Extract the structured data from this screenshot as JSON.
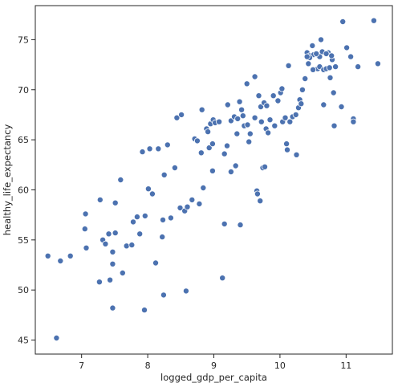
{
  "chart_data": {
    "type": "scatter",
    "title": "",
    "xlabel": "logged_gdp_per_capita",
    "ylabel": "healthy_life_expectancy",
    "xlim": [
      6.3,
      11.7
    ],
    "ylim": [
      43.6,
      78.4
    ],
    "xticks": [
      7,
      8,
      9,
      10,
      11
    ],
    "yticks": [
      45,
      50,
      55,
      60,
      65,
      70,
      75
    ],
    "grid": false,
    "marker_color": "#4c72b0",
    "marker_edge_color": "#ffffff",
    "series": [
      {
        "points": [
          [
            6.49,
            53.4
          ],
          [
            6.62,
            45.2
          ],
          [
            6.68,
            52.9
          ],
          [
            6.83,
            53.4
          ],
          [
            7.05,
            56.1
          ],
          [
            7.06,
            57.6
          ],
          [
            7.07,
            54.2
          ],
          [
            7.27,
            50.8
          ],
          [
            7.28,
            59.0
          ],
          [
            7.32,
            55.0
          ],
          [
            7.36,
            54.6
          ],
          [
            7.41,
            55.6
          ],
          [
            7.43,
            51.0
          ],
          [
            7.47,
            53.8
          ],
          [
            7.47,
            52.6
          ],
          [
            7.47,
            48.2
          ],
          [
            7.51,
            58.7
          ],
          [
            7.51,
            55.7
          ],
          [
            7.59,
            61.0
          ],
          [
            7.62,
            51.7
          ],
          [
            7.68,
            54.4
          ],
          [
            7.76,
            54.5
          ],
          [
            7.78,
            56.8
          ],
          [
            7.84,
            57.3
          ],
          [
            7.88,
            55.6
          ],
          [
            7.92,
            63.8
          ],
          [
            7.95,
            48.0
          ],
          [
            7.96,
            57.4
          ],
          [
            8.01,
            60.1
          ],
          [
            8.03,
            64.1
          ],
          [
            8.07,
            59.6
          ],
          [
            8.12,
            52.7
          ],
          [
            8.16,
            64.1
          ],
          [
            8.22,
            55.3
          ],
          [
            8.24,
            49.5
          ],
          [
            8.23,
            57.0
          ],
          [
            8.25,
            61.5
          ],
          [
            8.3,
            64.5
          ],
          [
            8.35,
            57.2
          ],
          [
            8.41,
            62.2
          ],
          [
            8.44,
            67.2
          ],
          [
            8.49,
            58.2
          ],
          [
            8.51,
            67.5
          ],
          [
            8.56,
            57.9
          ],
          [
            8.58,
            49.9
          ],
          [
            8.6,
            58.3
          ],
          [
            8.67,
            59.0
          ],
          [
            8.71,
            65.1
          ],
          [
            8.75,
            64.9
          ],
          [
            8.78,
            58.6
          ],
          [
            8.82,
            68.0
          ],
          [
            8.81,
            63.7
          ],
          [
            8.84,
            60.2
          ],
          [
            8.89,
            66.1
          ],
          [
            8.91,
            65.8
          ],
          [
            8.93,
            64.2
          ],
          [
            8.95,
            66.6
          ],
          [
            8.98,
            61.9
          ],
          [
            8.98,
            64.6
          ],
          [
            8.99,
            67.0
          ],
          [
            9.02,
            66.7
          ],
          [
            9.08,
            66.8
          ],
          [
            9.13,
            51.2
          ],
          [
            9.16,
            56.6
          ],
          [
            9.16,
            63.6
          ],
          [
            9.2,
            64.4
          ],
          [
            9.21,
            68.5
          ],
          [
            9.26,
            66.9
          ],
          [
            9.26,
            61.8
          ],
          [
            9.31,
            67.3
          ],
          [
            9.33,
            62.4
          ],
          [
            9.35,
            65.6
          ],
          [
            9.36,
            67.1
          ],
          [
            9.39,
            68.8
          ],
          [
            9.4,
            56.5
          ],
          [
            9.42,
            68.0
          ],
          [
            9.44,
            67.4
          ],
          [
            9.46,
            66.4
          ],
          [
            9.5,
            70.6
          ],
          [
            9.51,
            66.5
          ],
          [
            9.53,
            64.8
          ],
          [
            9.55,
            65.6
          ],
          [
            9.62,
            71.3
          ],
          [
            9.62,
            67.2
          ],
          [
            9.65,
            59.9
          ],
          [
            9.66,
            59.6
          ],
          [
            9.68,
            69.4
          ],
          [
            9.7,
            58.9
          ],
          [
            9.71,
            68.3
          ],
          [
            9.72,
            66.8
          ],
          [
            9.74,
            62.2
          ],
          [
            9.76,
            68.7
          ],
          [
            9.77,
            62.3
          ],
          [
            9.79,
            66.1
          ],
          [
            9.8,
            68.4
          ],
          [
            9.82,
            65.7
          ],
          [
            9.85,
            67.0
          ],
          [
            9.9,
            69.4
          ],
          [
            9.92,
            66.4
          ],
          [
            9.97,
            68.9
          ],
          [
            10.01,
            69.7
          ],
          [
            10.03,
            70.1
          ],
          [
            10.04,
            66.8
          ],
          [
            10.08,
            67.2
          ],
          [
            10.1,
            64.6
          ],
          [
            10.11,
            64.0
          ],
          [
            10.13,
            72.4
          ],
          [
            10.15,
            66.8
          ],
          [
            10.19,
            67.3
          ],
          [
            10.24,
            67.5
          ],
          [
            10.25,
            63.5
          ],
          [
            10.28,
            68.2
          ],
          [
            10.3,
            69.0
          ],
          [
            10.32,
            68.6
          ],
          [
            10.34,
            70.0
          ],
          [
            10.38,
            71.1
          ],
          [
            10.41,
            73.7
          ],
          [
            10.43,
            72.6
          ],
          [
            10.45,
            73.4
          ],
          [
            10.49,
            74.4
          ],
          [
            10.51,
            73.5
          ],
          [
            10.56,
            73.5
          ],
          [
            10.57,
            72.1
          ],
          [
            10.6,
            72.3
          ],
          [
            10.62,
            75.0
          ],
          [
            10.64,
            73.8
          ],
          [
            10.66,
            72.0
          ],
          [
            10.7,
            72.1
          ],
          [
            10.73,
            73.7
          ],
          [
            10.75,
            72.2
          ],
          [
            10.76,
            71.2
          ],
          [
            10.79,
            73.0
          ],
          [
            10.81,
            69.7
          ],
          [
            10.82,
            66.4
          ],
          [
            10.84,
            72.3
          ],
          [
            10.66,
            68.5
          ],
          [
            10.5,
            72.0
          ],
          [
            10.45,
            73.2
          ],
          [
            10.93,
            68.3
          ],
          [
            10.95,
            76.8
          ],
          [
            11.01,
            74.2
          ],
          [
            11.07,
            73.3
          ],
          [
            11.11,
            67.1
          ],
          [
            11.11,
            66.8
          ],
          [
            11.18,
            72.3
          ],
          [
            11.42,
            76.9
          ],
          [
            11.48,
            72.6
          ],
          [
            10.6,
            73.3
          ],
          [
            10.78,
            73.4
          ],
          [
            10.7,
            73.6
          ],
          [
            10.41,
            73.3
          ],
          [
            10.55,
            73.6
          ]
        ]
      }
    ]
  }
}
